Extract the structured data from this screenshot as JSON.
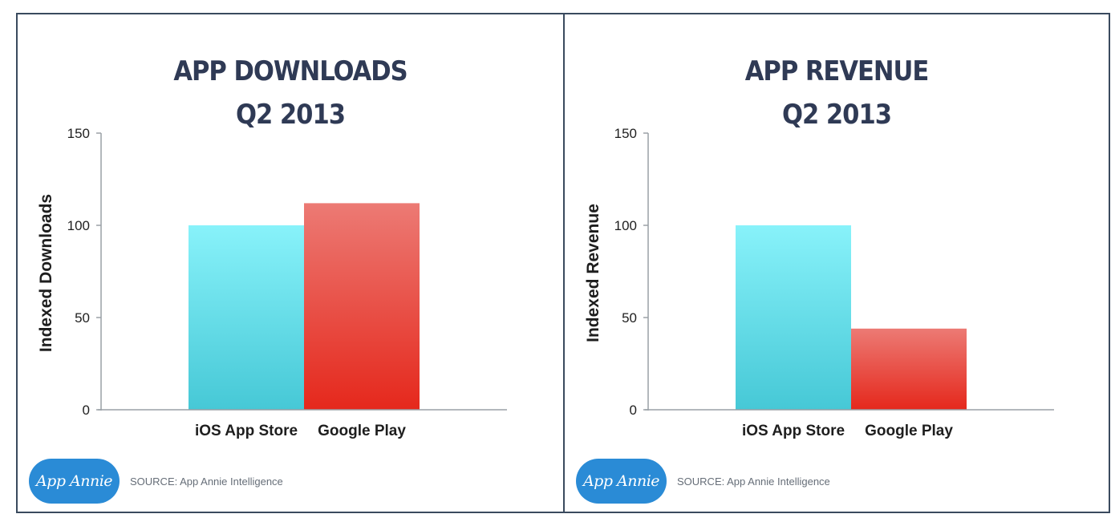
{
  "chart_data": [
    {
      "type": "bar",
      "title": [
        "APP DOWNLOADS",
        "Q2 2013"
      ],
      "categories": [
        "iOS App Store",
        "Google Play"
      ],
      "values": [
        100,
        112
      ],
      "ylabel": "Indexed Downloads",
      "xlabel": "",
      "ylim": [
        0,
        150
      ],
      "yticks": [
        0,
        50,
        100,
        150
      ],
      "grid": false,
      "colors": [
        [
          "#88f2fa",
          "#46c8d6"
        ],
        [
          "#ec7a74",
          "#e5281c"
        ]
      ],
      "source": "SOURCE: App Annie Intelligence",
      "logo": "App Annie"
    },
    {
      "type": "bar",
      "title": [
        "APP REVENUE",
        "Q2 2013"
      ],
      "categories": [
        "iOS App Store",
        "Google Play"
      ],
      "values": [
        100,
        44
      ],
      "ylabel": "Indexed Revenue",
      "xlabel": "",
      "ylim": [
        0,
        150
      ],
      "yticks": [
        0,
        50,
        100,
        150
      ],
      "grid": false,
      "colors": [
        [
          "#88f2fa",
          "#46c8d6"
        ],
        [
          "#ec7a74",
          "#e5281c"
        ]
      ],
      "source": "SOURCE: App Annie Intelligence",
      "logo": "App Annie"
    }
  ]
}
